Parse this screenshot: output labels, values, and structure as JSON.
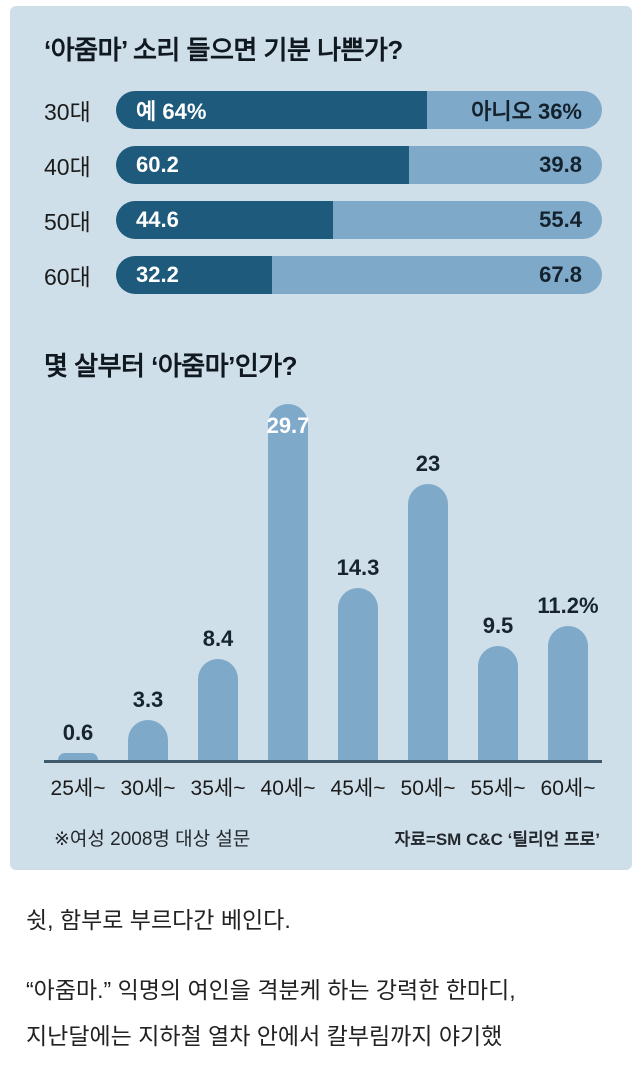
{
  "colors": {
    "panel_bg": "#cfdfe9",
    "bar_dark": "#1d5a7c",
    "bar_light": "#7fa9c9",
    "axis": "#3e5a6b",
    "page_bg": "#ffffff"
  },
  "chart_data": [
    {
      "type": "bar",
      "orientation": "horizontal_stacked",
      "title": "‘아줌마’ 소리 들으면 기분 나쁜가?",
      "categories": [
        "30대",
        "40대",
        "50대",
        "60대"
      ],
      "series": [
        {
          "name": "예",
          "values": [
            64,
            60.2,
            44.6,
            32.2
          ]
        },
        {
          "name": "아니오",
          "values": [
            36,
            39.8,
            55.4,
            67.8
          ]
        }
      ],
      "segment_labels": {
        "yes": [
          "예 64%",
          "60.2",
          "44.6",
          "32.2"
        ],
        "no": [
          "아니오 36%",
          "39.8",
          "55.4",
          "67.8"
        ]
      },
      "xlim": [
        0,
        100
      ],
      "legend": "none",
      "grid": false
    },
    {
      "type": "bar",
      "orientation": "vertical",
      "title": "몇 살부터 ‘아줌마’인가?",
      "categories": [
        "25세~",
        "30세~",
        "35세~",
        "40세~",
        "45세~",
        "50세~",
        "55세~",
        "60세~"
      ],
      "values": [
        0.6,
        3.3,
        8.4,
        29.7,
        14.3,
        23,
        9.5,
        11.2
      ],
      "value_labels": [
        "0.6",
        "3.3",
        "8.4",
        "29.7",
        "14.3",
        "23",
        "9.5",
        "11.2%"
      ],
      "label_inside_index": 3,
      "ylim": [
        0,
        30.5
      ],
      "grid": false,
      "legend": "none",
      "footnote_left": "※여성 2008명 대상 설문",
      "footnote_right": "자료=SM C&C ‘틸리언 프로’"
    }
  ],
  "article": {
    "line1": "쉿, 함부로 부르다간 베인다.",
    "line2": "“아줌마.” 익명의 여인을 격분케 하는 강력한 한마디,",
    "line3": "지난달에는 지하철 열차 안에서 칼부림까지 야기했"
  }
}
